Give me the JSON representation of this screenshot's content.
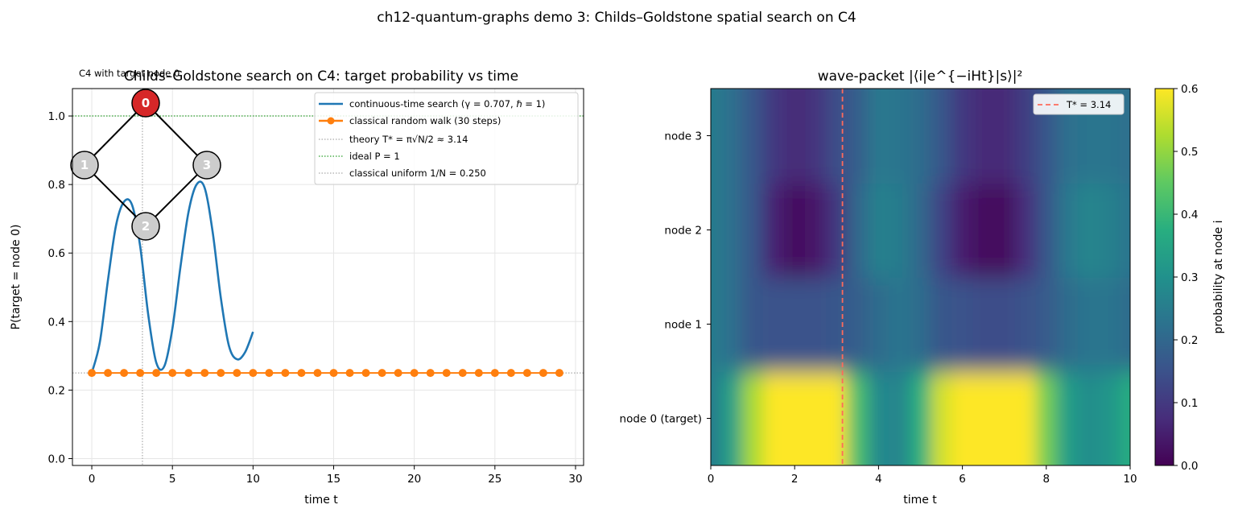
{
  "figure": {
    "suptitle": "ch12-quantum-graphs demo 3: Childs–Goldstone spatial search on C4"
  },
  "chart_data": [
    {
      "type": "line",
      "title": "Childs–Goldstone search on C4: target probability vs time",
      "xlabel": "time t",
      "ylabel": "P(target = node 0)",
      "xlim": [
        -1.2,
        30.5
      ],
      "ylim": [
        -0.02,
        1.08
      ],
      "xticks": [
        0,
        5,
        10,
        15,
        20,
        25,
        30
      ],
      "yticks": [
        0.0,
        0.2,
        0.4,
        0.6,
        0.8,
        1.0
      ],
      "grid": true,
      "legend_position": "top-right",
      "colors": {
        "quantum": "#1f77b4",
        "classical": "#ff7f0e",
        "theory": "#aaaaaa",
        "ideal": "#2ca02c",
        "uniform": "#aaaaaa"
      },
      "series": [
        {
          "name": "continuous-time search (γ = 0.707, ℏ = 1)",
          "x": [
            0.0,
            0.5,
            1.0,
            1.5,
            2.0,
            2.5,
            3.0,
            3.5,
            4.0,
            4.5,
            5.0,
            5.5,
            6.0,
            6.5,
            7.0,
            7.5,
            8.0,
            8.5,
            9.0,
            9.5,
            10.0
          ],
          "y": [
            0.25,
            0.34,
            0.52,
            0.68,
            0.75,
            0.74,
            0.62,
            0.42,
            0.28,
            0.27,
            0.38,
            0.56,
            0.72,
            0.8,
            0.79,
            0.66,
            0.47,
            0.33,
            0.29,
            0.31,
            0.37
          ]
        },
        {
          "name": "classical random walk (30 steps)",
          "x": [
            0,
            1,
            2,
            3,
            4,
            5,
            6,
            7,
            8,
            9,
            10,
            11,
            12,
            13,
            14,
            15,
            16,
            17,
            18,
            19,
            20,
            21,
            22,
            23,
            24,
            25,
            26,
            27,
            28,
            29
          ],
          "y": [
            0.25,
            0.25,
            0.25,
            0.25,
            0.25,
            0.25,
            0.25,
            0.25,
            0.25,
            0.25,
            0.25,
            0.25,
            0.25,
            0.25,
            0.25,
            0.25,
            0.25,
            0.25,
            0.25,
            0.25,
            0.25,
            0.25,
            0.25,
            0.25,
            0.25,
            0.25,
            0.25,
            0.25,
            0.25,
            0.25
          ]
        }
      ],
      "reference_lines": [
        {
          "name": "theory T* = π√N/2 ≈ 3.14",
          "orientation": "vertical",
          "value": 3.14
        },
        {
          "name": "ideal P = 1",
          "orientation": "horizontal",
          "value": 1.0
        },
        {
          "name": "classical uniform 1/N = 0.250",
          "orientation": "horizontal",
          "value": 0.25
        }
      ],
      "inset": {
        "title": "C4 with target node 0",
        "nodes": [
          {
            "label": "0",
            "role": "target",
            "color": "#d62728"
          },
          {
            "label": "1",
            "role": "other",
            "color": "#cccccc"
          },
          {
            "label": "2",
            "role": "other",
            "color": "#cccccc"
          },
          {
            "label": "3",
            "role": "other",
            "color": "#cccccc"
          }
        ],
        "edges": [
          [
            "0",
            "1"
          ],
          [
            "1",
            "2"
          ],
          [
            "2",
            "3"
          ],
          [
            "3",
            "0"
          ]
        ]
      }
    },
    {
      "type": "heatmap",
      "title": "wave-packet |⟨i|e^{−iHt}|s⟩|²",
      "xlabel": "time t",
      "xlim": [
        0,
        10
      ],
      "xticks": [
        0,
        2,
        4,
        6,
        8,
        10
      ],
      "rows": [
        "node 0 (target)",
        "node 1",
        "node 2",
        "node 3"
      ],
      "t": [
        0.0,
        0.5,
        1.0,
        1.5,
        2.0,
        2.5,
        3.0,
        3.5,
        4.0,
        4.5,
        5.0,
        5.5,
        6.0,
        6.5,
        7.0,
        7.5,
        8.0,
        8.5,
        9.0,
        9.5,
        10.0
      ],
      "values": [
        [
          0.25,
          0.34,
          0.52,
          0.6,
          0.6,
          0.6,
          0.6,
          0.42,
          0.28,
          0.27,
          0.38,
          0.56,
          0.6,
          0.6,
          0.6,
          0.6,
          0.47,
          0.33,
          0.29,
          0.31,
          0.37
        ],
        [
          0.25,
          0.22,
          0.16,
          0.15,
          0.15,
          0.15,
          0.16,
          0.18,
          0.21,
          0.23,
          0.21,
          0.16,
          0.15,
          0.14,
          0.14,
          0.15,
          0.17,
          0.21,
          0.23,
          0.23,
          0.21
        ],
        [
          0.25,
          0.22,
          0.16,
          0.06,
          0.02,
          0.04,
          0.1,
          0.2,
          0.26,
          0.25,
          0.2,
          0.12,
          0.05,
          0.02,
          0.02,
          0.08,
          0.16,
          0.24,
          0.27,
          0.26,
          0.23
        ],
        [
          0.25,
          0.22,
          0.16,
          0.1,
          0.07,
          0.09,
          0.14,
          0.18,
          0.24,
          0.23,
          0.21,
          0.16,
          0.1,
          0.07,
          0.07,
          0.11,
          0.16,
          0.22,
          0.23,
          0.23,
          0.22
        ]
      ],
      "marker_line": {
        "name": "T* = 3.14",
        "value": 3.14,
        "color": "#ff6b5b"
      },
      "colorbar": {
        "label": "probability at node i",
        "range": [
          0.0,
          0.6
        ],
        "ticks": [
          0.0,
          0.1,
          0.2,
          0.3,
          0.4,
          0.5,
          0.6
        ]
      },
      "colormap": "viridis",
      "legend_position": "top-right"
    }
  ]
}
